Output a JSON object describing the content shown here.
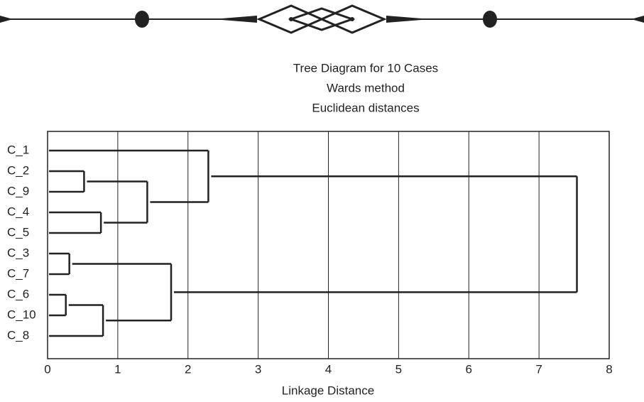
{
  "chart_data": {
    "type": "dendrogram",
    "title": "Tree Diagram for 10 Cases",
    "subtitle": [
      "Wards method",
      "Euclidean distances"
    ],
    "x_label": "Linkage Distance",
    "leaves": [
      "C_1",
      "C_2",
      "C_9",
      "C_4",
      "C_5",
      "C_3",
      "C_7",
      "C_6",
      "C_10",
      "C_8"
    ],
    "merges": [
      [
        1,
        2,
        0.52
      ],
      [
        3,
        4,
        0.76
      ],
      [
        10,
        11,
        1.42
      ],
      [
        0,
        12,
        2.29
      ],
      [
        5,
        6,
        0.31
      ],
      [
        7,
        8,
        0.26
      ],
      [
        15,
        9,
        0.79
      ],
      [
        14,
        16,
        1.76
      ],
      [
        13,
        17,
        7.54
      ]
    ],
    "xlim": [
      0,
      8
    ],
    "xticks": [
      0,
      1,
      2,
      3,
      4,
      5,
      6,
      7,
      8
    ],
    "grid": true,
    "color": "#222222"
  }
}
